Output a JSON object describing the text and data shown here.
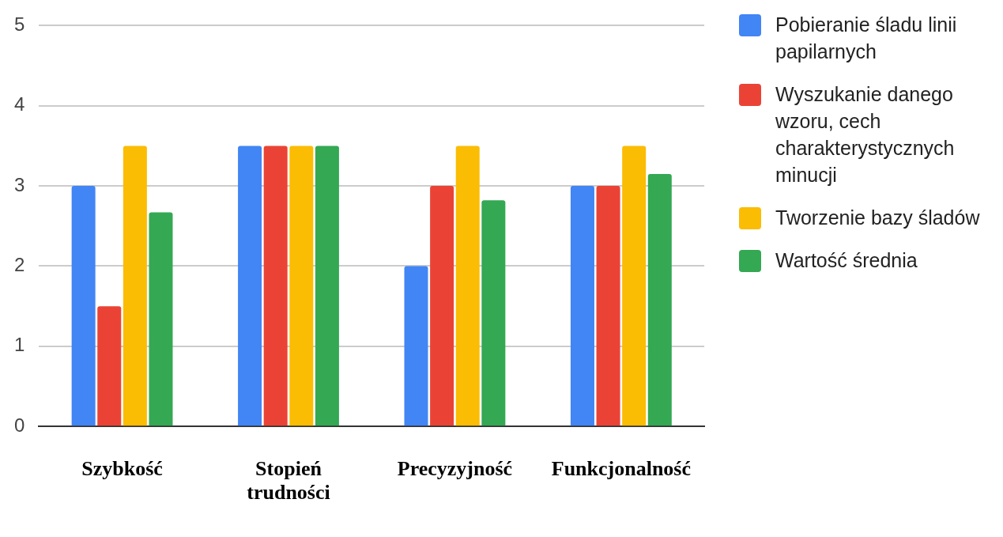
{
  "chart_data": {
    "type": "bar",
    "categories": [
      "Szybkość",
      "Stopień trudności",
      "Precyzyjność",
      "Funkcjonalność"
    ],
    "series": [
      {
        "name": "Pobieranie śladu linii papilarnych",
        "color": "#4285f4",
        "values": [
          3,
          3.5,
          2,
          3
        ]
      },
      {
        "name": "Wyszukanie danego wzoru, cech charakterystycznych minucji",
        "color": "#ea4335",
        "values": [
          1.5,
          3.5,
          3,
          3
        ]
      },
      {
        "name": "Tworzenie bazy śladów",
        "color": "#fbbc04",
        "values": [
          3.5,
          3.5,
          3.5,
          3.5
        ]
      },
      {
        "name": "Wartość średnia",
        "color": "#34a853",
        "values": [
          2.67,
          3.5,
          2.82,
          3.15
        ]
      }
    ],
    "ylim": [
      0,
      5
    ],
    "yticks": [
      0,
      1,
      2,
      3,
      4,
      5
    ],
    "grid": "y",
    "legend": "right"
  }
}
